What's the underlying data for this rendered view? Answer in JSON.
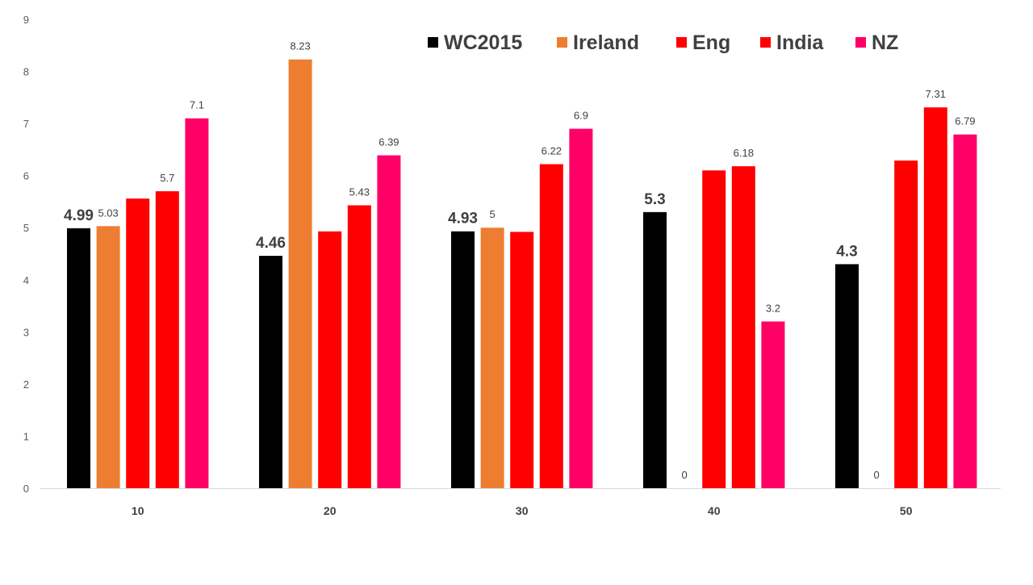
{
  "chart_data": {
    "type": "bar",
    "title": "",
    "xlabel": "",
    "ylabel": "",
    "categories": [
      "10",
      "20",
      "30",
      "40",
      "50"
    ],
    "ylim": [
      0,
      9
    ],
    "yticks": [
      "0",
      "1",
      "2",
      "3",
      "4",
      "5",
      "6",
      "7",
      "8",
      "9"
    ],
    "grid": false,
    "legend_position": "top",
    "series": [
      {
        "name": "WC2015",
        "color": "#000000",
        "values": [
          4.99,
          4.46,
          4.93,
          5.3,
          4.3
        ],
        "labels": [
          "4.99",
          "4.46",
          "4.93",
          "5.3",
          "4.3"
        ],
        "label_style": "bold-large"
      },
      {
        "name": "Ireland",
        "color": "#ED7D31",
        "values": [
          5.03,
          8.23,
          5,
          0,
          0
        ],
        "labels": [
          "5.03",
          "8.23",
          "5",
          "0",
          "0"
        ],
        "label_style": "normal"
      },
      {
        "name": "Eng",
        "color": "#FF0000",
        "values": [
          5.56,
          4.93,
          4.92,
          6.1,
          6.29
        ],
        "labels": [
          "",
          "",
          "",
          "",
          ""
        ],
        "label_style": "normal"
      },
      {
        "name": "India",
        "color": "#FF0000",
        "values": [
          5.7,
          5.43,
          6.22,
          6.18,
          7.31
        ],
        "labels": [
          "5.7",
          "5.43",
          "6.22",
          "6.18",
          "7.31"
        ],
        "label_style": "normal"
      },
      {
        "name": "NZ",
        "color": "#FF0066",
        "values": [
          7.1,
          6.39,
          6.9,
          3.2,
          6.79
        ],
        "labels": [
          "7.1",
          "6.39",
          "6.9",
          "3.2",
          "6.79"
        ],
        "label_style": "normal"
      }
    ]
  }
}
